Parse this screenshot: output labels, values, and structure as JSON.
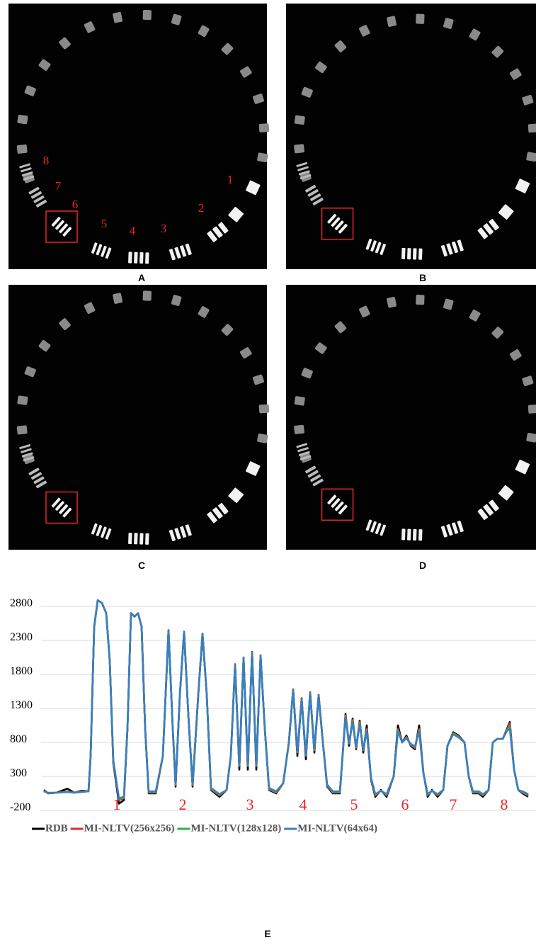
{
  "panels": [
    {
      "label": "A"
    },
    {
      "label": "B"
    },
    {
      "label": "C"
    },
    {
      "label": "D"
    }
  ],
  "roi_labels": [
    "1",
    "2",
    "3",
    "4",
    "5",
    "6",
    "7",
    "8"
  ],
  "chart_data": {
    "type": "line",
    "panel_label": "E",
    "x": [
      0,
      6,
      18,
      33,
      43,
      53,
      63,
      66,
      71,
      76,
      82,
      88,
      93,
      98,
      106,
      113,
      118,
      123,
      128,
      133,
      138,
      143,
      148,
      158,
      168,
      176,
      182,
      186,
      192,
      198,
      204,
      210,
      218,
      224,
      230,
      236,
      248,
      258,
      264,
      270,
      276,
      282,
      288,
      294,
      300,
      306,
      312,
      318,
      328,
      338,
      346,
      352,
      358,
      364,
      370,
      376,
      382,
      388,
      394,
      400,
      408,
      418,
      426,
      431,
      436,
      441,
      446,
      451,
      456,
      462,
      468,
      476,
      484,
      494,
      500,
      506,
      512,
      518,
      524,
      530,
      536,
      542,
      548,
      556,
      564,
      570,
      578,
      586,
      594,
      600,
      606,
      614,
      620,
      628,
      634,
      640,
      648,
      654,
      658,
      664,
      670,
      676,
      684
    ],
    "xlim": [
      0,
      684
    ],
    "ylim": [
      -200,
      2950
    ],
    "yticks": [
      -200,
      300,
      800,
      1300,
      1800,
      2300,
      2800
    ],
    "grid": true,
    "annotations": [
      {
        "text": "1",
        "x": 103
      },
      {
        "text": "2",
        "x": 196
      },
      {
        "text": "3",
        "x": 291
      },
      {
        "text": "4",
        "x": 366
      },
      {
        "text": "5",
        "x": 438
      },
      {
        "text": "6",
        "x": 510
      },
      {
        "text": "7",
        "x": 578
      },
      {
        "text": "8",
        "x": 650
      }
    ],
    "series": [
      {
        "name": "RDB",
        "color": "#000000",
        "values": [
          100,
          50,
          60,
          120,
          60,
          90,
          80,
          600,
          2500,
          2890,
          2850,
          2700,
          2000,
          500,
          -100,
          -50,
          1000,
          2700,
          2650,
          2700,
          2500,
          1000,
          50,
          50,
          600,
          2450,
          1000,
          150,
          1500,
          2430,
          1200,
          150,
          1500,
          2400,
          1500,
          100,
          0,
          100,
          600,
          1950,
          400,
          2050,
          400,
          2130,
          400,
          2080,
          1000,
          100,
          50,
          200,
          800,
          1580,
          600,
          1450,
          550,
          1540,
          650,
          1500,
          800,
          150,
          50,
          50,
          1220,
          750,
          1150,
          700,
          1120,
          650,
          1050,
          250,
          0,
          100,
          0,
          300,
          1050,
          800,
          900,
          750,
          700,
          1050,
          350,
          0,
          100,
          0,
          100,
          750,
          950,
          900,
          800,
          300,
          50,
          50,
          0,
          100,
          800,
          850,
          850,
          1000,
          1100,
          400,
          100,
          50,
          0
        ]
      },
      {
        "name": "MI-NLTV(256x256)",
        "color": "#e8262a",
        "values": [
          90,
          50,
          60,
          80,
          60,
          80,
          80,
          600,
          2500,
          2890,
          2850,
          2700,
          2000,
          520,
          -50,
          -20,
          1000,
          2700,
          2650,
          2700,
          2500,
          1000,
          60,
          60,
          600,
          2450,
          1000,
          170,
          1500,
          2430,
          1200,
          170,
          1500,
          2400,
          1500,
          110,
          20,
          100,
          600,
          1950,
          450,
          2050,
          450,
          2130,
          450,
          2080,
          1000,
          110,
          60,
          200,
          800,
          1580,
          650,
          1450,
          600,
          1540,
          680,
          1500,
          800,
          160,
          60,
          60,
          1200,
          780,
          1130,
          720,
          1100,
          680,
          1000,
          260,
          20,
          90,
          20,
          300,
          1000,
          800,
          880,
          760,
          720,
          1000,
          350,
          20,
          90,
          20,
          100,
          750,
          940,
          890,
          800,
          300,
          60,
          60,
          20,
          100,
          800,
          850,
          850,
          990,
          1080,
          400,
          100,
          60,
          20
        ]
      },
      {
        "name": "MI-NLTV(128x128)",
        "color": "#2fb04a",
        "values": [
          85,
          55,
          60,
          75,
          60,
          75,
          80,
          600,
          2500,
          2890,
          2850,
          2700,
          2000,
          530,
          -30,
          -10,
          1000,
          2700,
          2650,
          2700,
          2500,
          1000,
          70,
          70,
          600,
          2450,
          1000,
          180,
          1500,
          2430,
          1200,
          180,
          1500,
          2400,
          1500,
          120,
          30,
          100,
          600,
          1940,
          460,
          2040,
          460,
          2120,
          460,
          2070,
          1000,
          120,
          70,
          200,
          800,
          1570,
          660,
          1440,
          610,
          1530,
          690,
          1490,
          800,
          170,
          70,
          70,
          1180,
          790,
          1110,
          730,
          1080,
          690,
          980,
          270,
          30,
          90,
          30,
          300,
          980,
          800,
          870,
          770,
          730,
          980,
          350,
          30,
          90,
          30,
          100,
          750,
          930,
          880,
          800,
          300,
          70,
          70,
          30,
          100,
          800,
          850,
          850,
          980,
          1040,
          400,
          100,
          70,
          30
        ]
      },
      {
        "name": "MI-NLTV(64x64)",
        "color": "#3a7fc1",
        "values": [
          80,
          60,
          60,
          70,
          60,
          70,
          80,
          600,
          2500,
          2890,
          2850,
          2700,
          2000,
          540,
          -20,
          0,
          1000,
          2700,
          2650,
          2700,
          2500,
          1000,
          80,
          80,
          600,
          2450,
          1000,
          190,
          1500,
          2430,
          1200,
          190,
          1500,
          2400,
          1500,
          130,
          40,
          100,
          600,
          1930,
          470,
          2030,
          470,
          2110,
          470,
          2060,
          1000,
          130,
          80,
          200,
          800,
          1560,
          670,
          1430,
          620,
          1520,
          700,
          1480,
          800,
          180,
          80,
          80,
          1160,
          800,
          1090,
          740,
          1060,
          700,
          960,
          280,
          40,
          90,
          40,
          300,
          960,
          800,
          860,
          780,
          740,
          960,
          350,
          40,
          90,
          40,
          100,
          750,
          920,
          870,
          800,
          300,
          80,
          80,
          40,
          100,
          800,
          850,
          850,
          970,
          1000,
          400,
          100,
          80,
          40
        ]
      }
    ]
  }
}
